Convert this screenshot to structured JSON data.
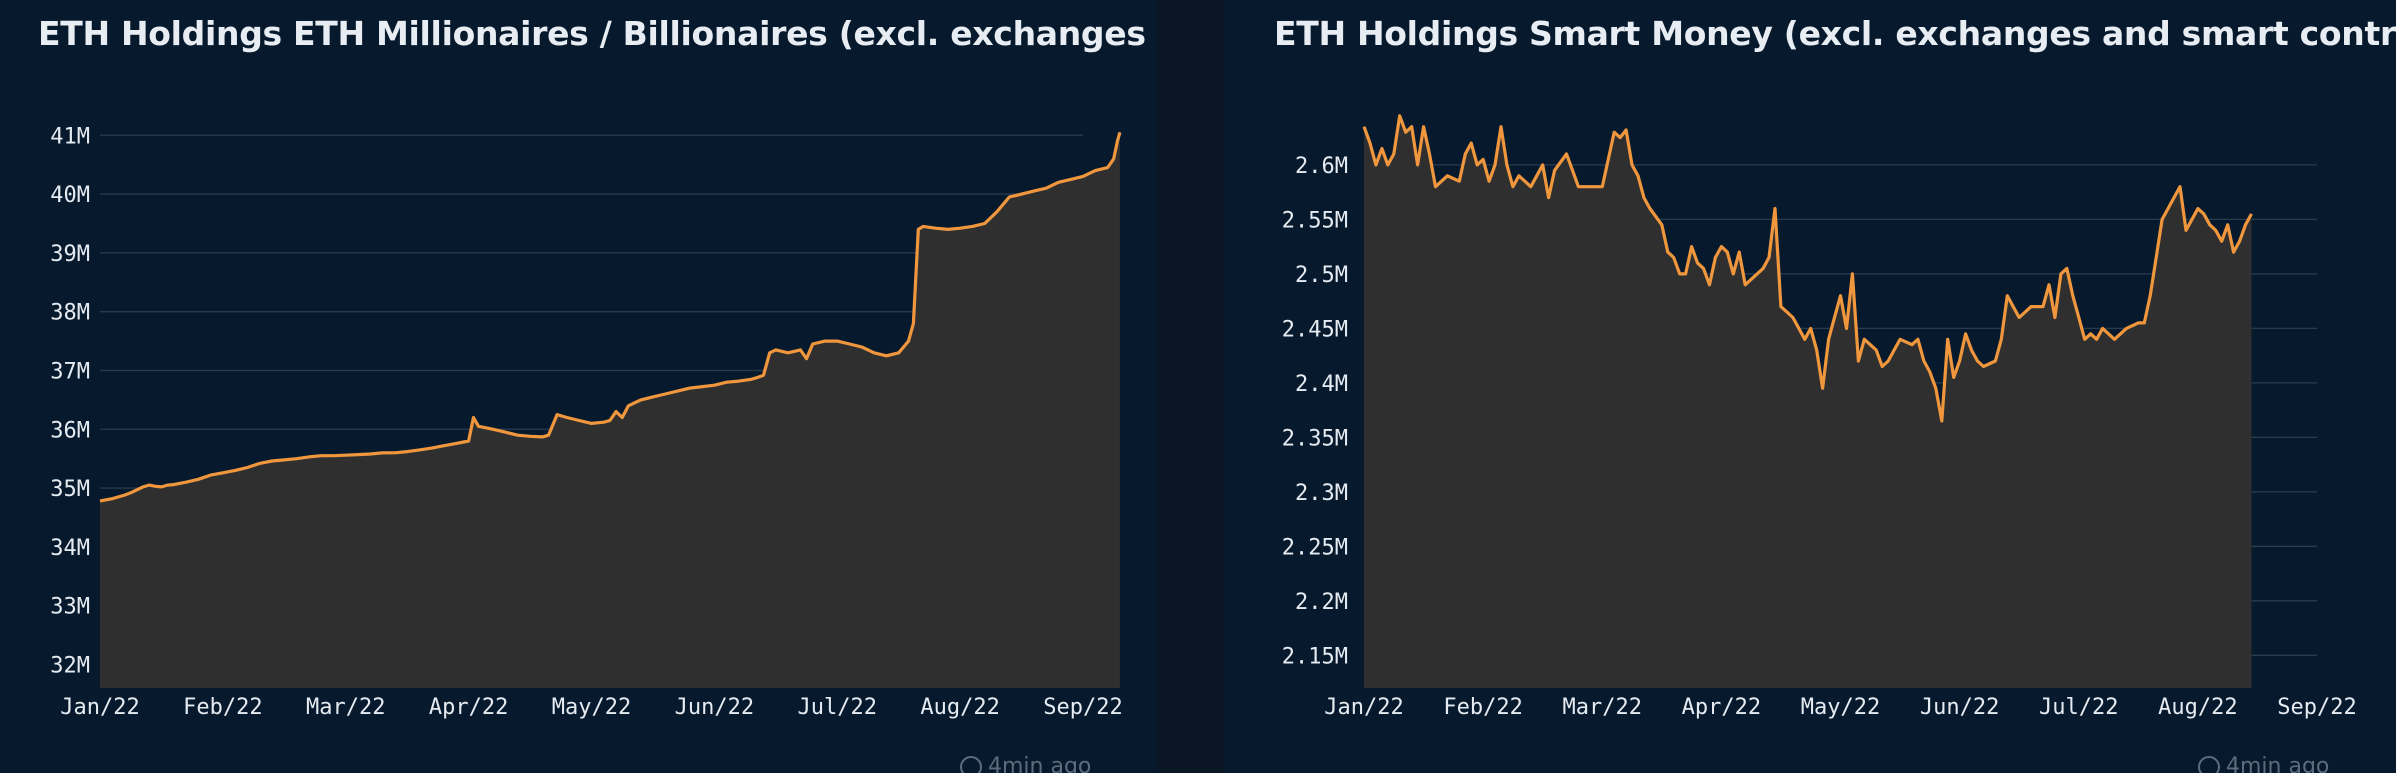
{
  "chart_data": [
    {
      "type": "area",
      "title": "ETH Holdings ETH Millionaires / Billionaires (excl. exchanges and ...",
      "categories": [
        "Jan/22",
        "Feb/22",
        "Mar/22",
        "Apr/22",
        "May/22",
        "Jun/22",
        "Jul/22",
        "Aug/22",
        "Sep/22"
      ],
      "y_ticks": [
        "32M",
        "33M",
        "34M",
        "35M",
        "36M",
        "37M",
        "38M",
        "39M",
        "40M",
        "41M"
      ],
      "ylim": [
        31.6,
        41.6
      ],
      "grid": true,
      "series": [
        {
          "name": "ETH Holdings",
          "color": "#f0973e",
          "points": [
            [
              0,
              34.78
            ],
            [
              0.05,
              34.8
            ],
            [
              0.1,
              34.82
            ],
            [
              0.15,
              34.85
            ],
            [
              0.2,
              34.88
            ],
            [
              0.25,
              34.92
            ],
            [
              0.3,
              34.97
            ],
            [
              0.35,
              35.02
            ],
            [
              0.4,
              35.05
            ],
            [
              0.45,
              35.03
            ],
            [
              0.5,
              35.02
            ],
            [
              0.55,
              35.05
            ],
            [
              0.6,
              35.06
            ],
            [
              0.7,
              35.1
            ],
            [
              0.8,
              35.15
            ],
            [
              0.9,
              35.22
            ],
            [
              1.0,
              35.26
            ],
            [
              1.1,
              35.3
            ],
            [
              1.2,
              35.35
            ],
            [
              1.3,
              35.42
            ],
            [
              1.4,
              35.46
            ],
            [
              1.5,
              35.48
            ],
            [
              1.6,
              35.5
            ],
            [
              1.7,
              35.53
            ],
            [
              1.8,
              35.55
            ],
            [
              1.9,
              35.55
            ],
            [
              2.0,
              35.56
            ],
            [
              2.1,
              35.57
            ],
            [
              2.2,
              35.58
            ],
            [
              2.3,
              35.6
            ],
            [
              2.4,
              35.6
            ],
            [
              2.5,
              35.62
            ],
            [
              2.6,
              35.65
            ],
            [
              2.7,
              35.68
            ],
            [
              2.8,
              35.72
            ],
            [
              2.9,
              35.76
            ],
            [
              3.0,
              35.8
            ],
            [
              3.04,
              36.2
            ],
            [
              3.08,
              36.05
            ],
            [
              3.2,
              36.0
            ],
            [
              3.3,
              35.95
            ],
            [
              3.4,
              35.9
            ],
            [
              3.5,
              35.88
            ],
            [
              3.6,
              35.87
            ],
            [
              3.65,
              35.9
            ],
            [
              3.72,
              36.25
            ],
            [
              3.8,
              36.2
            ],
            [
              3.9,
              36.15
            ],
            [
              4.0,
              36.1
            ],
            [
              4.1,
              36.12
            ],
            [
              4.15,
              36.15
            ],
            [
              4.2,
              36.3
            ],
            [
              4.25,
              36.2
            ],
            [
              4.3,
              36.4
            ],
            [
              4.4,
              36.5
            ],
            [
              4.5,
              36.55
            ],
            [
              4.6,
              36.6
            ],
            [
              4.7,
              36.65
            ],
            [
              4.8,
              36.7
            ],
            [
              5.0,
              36.75
            ],
            [
              5.1,
              36.8
            ],
            [
              5.2,
              36.82
            ],
            [
              5.3,
              36.85
            ],
            [
              5.35,
              36.88
            ],
            [
              5.4,
              36.92
            ],
            [
              5.45,
              37.3
            ],
            [
              5.5,
              37.35
            ],
            [
              5.6,
              37.3
            ],
            [
              5.7,
              37.35
            ],
            [
              5.75,
              37.2
            ],
            [
              5.8,
              37.45
            ],
            [
              5.9,
              37.5
            ],
            [
              6.0,
              37.5
            ],
            [
              6.1,
              37.45
            ],
            [
              6.2,
              37.4
            ],
            [
              6.3,
              37.3
            ],
            [
              6.4,
              37.25
            ],
            [
              6.5,
              37.3
            ],
            [
              6.58,
              37.5
            ],
            [
              6.62,
              37.8
            ],
            [
              6.66,
              39.4
            ],
            [
              6.7,
              39.45
            ],
            [
              6.8,
              39.42
            ],
            [
              6.9,
              39.4
            ],
            [
              7.0,
              39.42
            ],
            [
              7.1,
              39.45
            ],
            [
              7.2,
              39.5
            ],
            [
              7.3,
              39.7
            ],
            [
              7.4,
              39.95
            ],
            [
              7.5,
              40.0
            ],
            [
              7.6,
              40.05
            ],
            [
              7.7,
              40.1
            ],
            [
              7.8,
              40.2
            ],
            [
              7.9,
              40.25
            ],
            [
              8.0,
              40.3
            ],
            [
              8.1,
              40.4
            ],
            [
              8.2,
              40.45
            ],
            [
              8.25,
              40.6
            ],
            [
              8.28,
              40.9
            ],
            [
              8.3,
              41.05
            ]
          ]
        }
      ]
    },
    {
      "type": "area",
      "title": "ETH Holdings Smart Money (excl. exchanges and smart contracts)",
      "categories": [
        "Jan/22",
        "Feb/22",
        "Mar/22",
        "Apr/22",
        "May/22",
        "Jun/22",
        "Jul/22",
        "Aug/22",
        "Sep/22"
      ],
      "y_ticks": [
        "2.15M",
        "2.2M",
        "2.25M",
        "2.3M",
        "2.35M",
        "2.4M",
        "2.45M",
        "2.5M",
        "2.55M",
        "2.6M"
      ],
      "ylim": [
        2.12,
        2.632
      ],
      "grid": true,
      "series": [
        {
          "name": "ETH Holdings",
          "color": "#f0973e",
          "points": [
            [
              0,
              2.635
            ],
            [
              0.05,
              2.62
            ],
            [
              0.1,
              2.6
            ],
            [
              0.15,
              2.615
            ],
            [
              0.2,
              2.6
            ],
            [
              0.25,
              2.61
            ],
            [
              0.3,
              2.645
            ],
            [
              0.35,
              2.63
            ],
            [
              0.4,
              2.635
            ],
            [
              0.45,
              2.6
            ],
            [
              0.5,
              2.635
            ],
            [
              0.55,
              2.61
            ],
            [
              0.6,
              2.58
            ],
            [
              0.7,
              2.59
            ],
            [
              0.8,
              2.585
            ],
            [
              0.85,
              2.61
            ],
            [
              0.9,
              2.62
            ],
            [
              0.95,
              2.6
            ],
            [
              1.0,
              2.605
            ],
            [
              1.05,
              2.585
            ],
            [
              1.1,
              2.6
            ],
            [
              1.15,
              2.635
            ],
            [
              1.2,
              2.6
            ],
            [
              1.25,
              2.58
            ],
            [
              1.3,
              2.59
            ],
            [
              1.4,
              2.58
            ],
            [
              1.5,
              2.6
            ],
            [
              1.55,
              2.57
            ],
            [
              1.6,
              2.595
            ],
            [
              1.7,
              2.61
            ],
            [
              1.75,
              2.595
            ],
            [
              1.8,
              2.58
            ],
            [
              1.9,
              2.58
            ],
            [
              2.0,
              2.58
            ],
            [
              2.1,
              2.63
            ],
            [
              2.15,
              2.625
            ],
            [
              2.2,
              2.632
            ],
            [
              2.25,
              2.6
            ],
            [
              2.3,
              2.59
            ],
            [
              2.35,
              2.57
            ],
            [
              2.4,
              2.56
            ],
            [
              2.5,
              2.545
            ],
            [
              2.55,
              2.52
            ],
            [
              2.6,
              2.515
            ],
            [
              2.65,
              2.5
            ],
            [
              2.7,
              2.5
            ],
            [
              2.75,
              2.525
            ],
            [
              2.8,
              2.51
            ],
            [
              2.85,
              2.505
            ],
            [
              2.9,
              2.49
            ],
            [
              2.95,
              2.515
            ],
            [
              3.0,
              2.525
            ],
            [
              3.05,
              2.52
            ],
            [
              3.1,
              2.5
            ],
            [
              3.15,
              2.52
            ],
            [
              3.2,
              2.49
            ],
            [
              3.3,
              2.5
            ],
            [
              3.35,
              2.505
            ],
            [
              3.4,
              2.515
            ],
            [
              3.45,
              2.56
            ],
            [
              3.5,
              2.47
            ],
            [
              3.6,
              2.46
            ],
            [
              3.7,
              2.44
            ],
            [
              3.75,
              2.45
            ],
            [
              3.8,
              2.43
            ],
            [
              3.85,
              2.395
            ],
            [
              3.9,
              2.44
            ],
            [
              3.95,
              2.46
            ],
            [
              4.0,
              2.48
            ],
            [
              4.05,
              2.45
            ],
            [
              4.1,
              2.5
            ],
            [
              4.15,
              2.42
            ],
            [
              4.2,
              2.44
            ],
            [
              4.3,
              2.43
            ],
            [
              4.35,
              2.415
            ],
            [
              4.4,
              2.42
            ],
            [
              4.45,
              2.43
            ],
            [
              4.5,
              2.44
            ],
            [
              4.6,
              2.435
            ],
            [
              4.65,
              2.44
            ],
            [
              4.7,
              2.42
            ],
            [
              4.75,
              2.41
            ],
            [
              4.8,
              2.395
            ],
            [
              4.85,
              2.365
            ],
            [
              4.9,
              2.44
            ],
            [
              4.95,
              2.405
            ],
            [
              5.0,
              2.42
            ],
            [
              5.05,
              2.445
            ],
            [
              5.1,
              2.43
            ],
            [
              5.15,
              2.42
            ],
            [
              5.2,
              2.415
            ],
            [
              5.3,
              2.42
            ],
            [
              5.35,
              2.44
            ],
            [
              5.4,
              2.48
            ],
            [
              5.45,
              2.47
            ],
            [
              5.5,
              2.46
            ],
            [
              5.6,
              2.47
            ],
            [
              5.7,
              2.47
            ],
            [
              5.75,
              2.49
            ],
            [
              5.8,
              2.46
            ],
            [
              5.85,
              2.5
            ],
            [
              5.9,
              2.505
            ],
            [
              5.95,
              2.48
            ],
            [
              6.0,
              2.46
            ],
            [
              6.05,
              2.44
            ],
            [
              6.1,
              2.445
            ],
            [
              6.15,
              2.44
            ],
            [
              6.2,
              2.45
            ],
            [
              6.3,
              2.44
            ],
            [
              6.4,
              2.45
            ],
            [
              6.5,
              2.455
            ],
            [
              6.55,
              2.455
            ],
            [
              6.6,
              2.48
            ],
            [
              6.65,
              2.515
            ],
            [
              6.7,
              2.55
            ],
            [
              6.75,
              2.56
            ],
            [
              6.8,
              2.57
            ],
            [
              6.85,
              2.58
            ],
            [
              6.9,
              2.54
            ],
            [
              7.0,
              2.56
            ],
            [
              7.05,
              2.555
            ],
            [
              7.1,
              2.545
            ],
            [
              7.15,
              2.54
            ],
            [
              7.2,
              2.53
            ],
            [
              7.25,
              2.545
            ],
            [
              7.3,
              2.52
            ],
            [
              7.35,
              2.53
            ],
            [
              7.4,
              2.545
            ],
            [
              7.45,
              2.555
            ]
          ]
        }
      ]
    }
  ],
  "footer": [
    {
      "text": "4min ago"
    },
    {
      "text": "4min ago"
    }
  ]
}
